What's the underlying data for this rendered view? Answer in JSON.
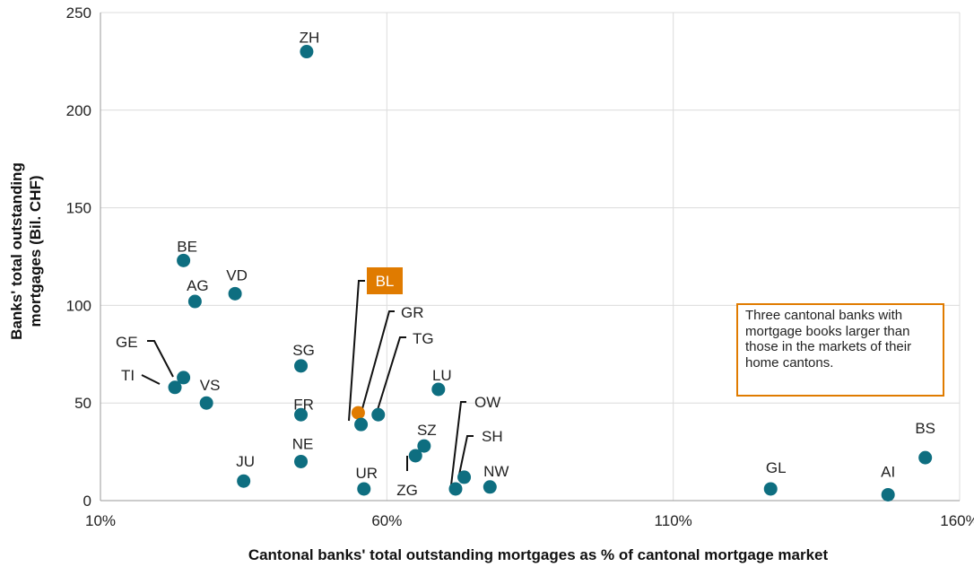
{
  "chart_data": {
    "type": "scatter",
    "xlabel": "Cantonal banks' total outstanding mortgages as % of cantonal mortgage market",
    "ylabel_lines": [
      "Banks' total outstanding",
      "mortgages (Bil. CHF)"
    ],
    "xlim": [
      10,
      160
    ],
    "ylim": [
      0,
      250
    ],
    "x_ticks": [
      10,
      60,
      110,
      160
    ],
    "x_tick_labels": [
      "10%",
      "60%",
      "110%",
      "160%"
    ],
    "y_ticks": [
      0,
      50,
      100,
      150,
      200,
      250
    ],
    "y_tick_labels": [
      "0",
      "50",
      "100",
      "150",
      "200",
      "250"
    ],
    "grid": true,
    "colors": {
      "default": "#0e6e80",
      "highlight": "#e07b00",
      "annotation_border": "#e07b00"
    },
    "points": [
      {
        "code": "ZH",
        "x": 46.0,
        "y": 230,
        "highlight": false
      },
      {
        "code": "BE",
        "x": 24.5,
        "y": 123,
        "highlight": false
      },
      {
        "code": "VD",
        "x": 33.5,
        "y": 106,
        "highlight": false
      },
      {
        "code": "AG",
        "x": 26.5,
        "y": 102,
        "highlight": false
      },
      {
        "code": "BL",
        "x": 55.0,
        "y": 45,
        "highlight": true
      },
      {
        "code": "GR",
        "x": 55.5,
        "y": 39,
        "highlight": false
      },
      {
        "code": "TG",
        "x": 58.5,
        "y": 44,
        "highlight": false
      },
      {
        "code": "SG",
        "x": 45.0,
        "y": 69,
        "highlight": false
      },
      {
        "code": "FR",
        "x": 45.0,
        "y": 44,
        "highlight": false
      },
      {
        "code": "LU",
        "x": 69.0,
        "y": 57,
        "highlight": false
      },
      {
        "code": "GE",
        "x": 24.5,
        "y": 63,
        "highlight": false
      },
      {
        "code": "TI",
        "x": 23.0,
        "y": 58,
        "highlight": false
      },
      {
        "code": "VS",
        "x": 28.5,
        "y": 50,
        "highlight": false
      },
      {
        "code": "OW",
        "x": 72.0,
        "y": 6,
        "highlight": false
      },
      {
        "code": "SH",
        "x": 73.5,
        "y": 12,
        "highlight": false
      },
      {
        "code": "NW",
        "x": 78.0,
        "y": 7,
        "highlight": false
      },
      {
        "code": "SZ",
        "x": 66.5,
        "y": 28,
        "highlight": false
      },
      {
        "code": "ZG",
        "x": 65.0,
        "y": 23,
        "highlight": false
      },
      {
        "code": "UR",
        "x": 56.0,
        "y": 6,
        "highlight": false
      },
      {
        "code": "NE",
        "x": 45.0,
        "y": 20,
        "highlight": false
      },
      {
        "code": "JU",
        "x": 35.0,
        "y": 10,
        "highlight": false
      },
      {
        "code": "GL",
        "x": 127.0,
        "y": 6,
        "highlight": false
      },
      {
        "code": "AI",
        "x": 147.5,
        "y": 3,
        "highlight": false
      },
      {
        "code": "BS",
        "x": 154.0,
        "y": 22,
        "highlight": false
      }
    ]
  },
  "annotation": {
    "text": "Three cantonal banks with mortgage books larger than those in the markets of their home cantons."
  }
}
